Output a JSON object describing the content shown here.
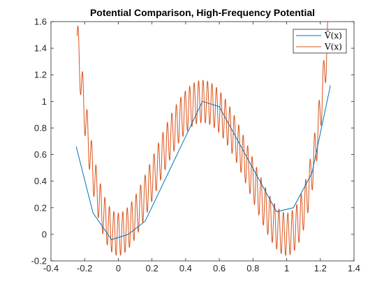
{
  "chart_data": {
    "type": "line",
    "title": "Potential Comparison, High-Frequency Potential",
    "xlabel": "",
    "ylabel": "",
    "xlim": [
      -0.4,
      1.4
    ],
    "ylim": [
      -0.2,
      1.6
    ],
    "x_ticks": [
      -0.4,
      -0.2,
      0,
      0.2,
      0.4,
      0.6,
      0.8,
      1,
      1.2,
      1.4
    ],
    "x_tick_labels": [
      "-0.4",
      "-0.2",
      "0",
      "0.2",
      "0.4",
      "0.6",
      "0.8",
      "1",
      "1.2",
      "1.4"
    ],
    "y_ticks": [
      -0.2,
      0,
      0.2,
      0.4,
      0.6,
      0.8,
      1,
      1.2,
      1.4,
      1.6
    ],
    "y_tick_labels": [
      "-0.2",
      "0",
      "0.2",
      "0.4",
      "0.6",
      "0.8",
      "1",
      "1.2",
      "1.4",
      "1.6"
    ],
    "grid": false,
    "legend_position": "top-right",
    "series": [
      {
        "name": "V̄(x)",
        "color": "#0072BD",
        "x": [
          -0.25,
          -0.15,
          -0.04,
          0.06,
          0.16,
          0.5,
          0.6,
          0.94,
          1.04,
          1.15,
          1.26
        ],
        "y": [
          0.66,
          0.16,
          -0.04,
          0.0,
          0.1,
          1.0,
          0.96,
          0.17,
          0.2,
          0.46,
          1.12
        ]
      },
      {
        "name": "V(x)",
        "color": "#D95319",
        "x_range": [
          -0.245,
          1.245
        ],
        "samples": 2400,
        "y_formula": "(1-(2x-1)^2)^2 + 0.16*cos(2*pi*x/0.0265)"
      }
    ]
  }
}
